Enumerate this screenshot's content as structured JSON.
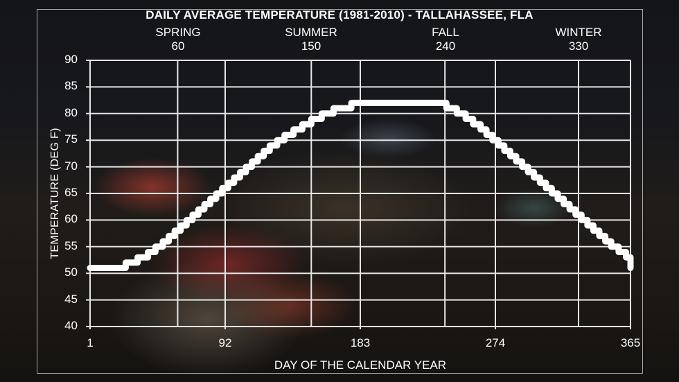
{
  "chart_data": {
    "type": "line",
    "title": "DAILY AVERAGE TEMPERATURE (1981-2010) - TALLAHASSEE, FLA",
    "xlabel": "DAY OF THE CALENDAR YEAR",
    "ylabel": "TEMPERATURE (DEG F)",
    "xlim": [
      1,
      365
    ],
    "ylim": [
      40,
      90
    ],
    "grid": true,
    "x_ticks": [
      1,
      92,
      183,
      274,
      365
    ],
    "y_ticks": [
      40,
      45,
      50,
      55,
      60,
      65,
      70,
      75,
      80,
      85,
      90
    ],
    "secondary_x_ticks": [
      {
        "label": "SPRING",
        "day": 60
      },
      {
        "label": "SUMMER",
        "day": 150
      },
      {
        "label": "FALL",
        "day": 240
      },
      {
        "label": "WINTER",
        "day": 330
      }
    ],
    "series": [
      {
        "name": "Daily average temperature",
        "step_points": [
          [
            1,
            51
          ],
          [
            25,
            51
          ],
          [
            25,
            52
          ],
          [
            33,
            52
          ],
          [
            33,
            53
          ],
          [
            40,
            53
          ],
          [
            40,
            54
          ],
          [
            45,
            54
          ],
          [
            45,
            55
          ],
          [
            50,
            55
          ],
          [
            50,
            56
          ],
          [
            54,
            56
          ],
          [
            54,
            57
          ],
          [
            58,
            57
          ],
          [
            58,
            58
          ],
          [
            62,
            58
          ],
          [
            62,
            59
          ],
          [
            66,
            59
          ],
          [
            66,
            60
          ],
          [
            70,
            60
          ],
          [
            70,
            61
          ],
          [
            74,
            61
          ],
          [
            74,
            62
          ],
          [
            78,
            62
          ],
          [
            78,
            63
          ],
          [
            82,
            63
          ],
          [
            82,
            64
          ],
          [
            86,
            64
          ],
          [
            86,
            65
          ],
          [
            90,
            65
          ],
          [
            90,
            66
          ],
          [
            94,
            66
          ],
          [
            94,
            67
          ],
          [
            98,
            67
          ],
          [
            98,
            68
          ],
          [
            102,
            68
          ],
          [
            102,
            69
          ],
          [
            106,
            69
          ],
          [
            106,
            70
          ],
          [
            110,
            70
          ],
          [
            110,
            71
          ],
          [
            114,
            71
          ],
          [
            114,
            72
          ],
          [
            118,
            72
          ],
          [
            118,
            73
          ],
          [
            122,
            73
          ],
          [
            122,
            74
          ],
          [
            127,
            74
          ],
          [
            127,
            75
          ],
          [
            132,
            75
          ],
          [
            132,
            76
          ],
          [
            138,
            76
          ],
          [
            138,
            77
          ],
          [
            144,
            77
          ],
          [
            144,
            78
          ],
          [
            150,
            78
          ],
          [
            150,
            79
          ],
          [
            157,
            79
          ],
          [
            157,
            80
          ],
          [
            165,
            80
          ],
          [
            165,
            81
          ],
          [
            177,
            81
          ],
          [
            177,
            82
          ],
          [
            241,
            82
          ],
          [
            241,
            81
          ],
          [
            248,
            81
          ],
          [
            248,
            80
          ],
          [
            254,
            80
          ],
          [
            254,
            79
          ],
          [
            259,
            79
          ],
          [
            259,
            78
          ],
          [
            264,
            78
          ],
          [
            264,
            77
          ],
          [
            268,
            77
          ],
          [
            268,
            76
          ],
          [
            272,
            76
          ],
          [
            272,
            75
          ],
          [
            276,
            75
          ],
          [
            276,
            74
          ],
          [
            280,
            74
          ],
          [
            280,
            73
          ],
          [
            284,
            73
          ],
          [
            284,
            72
          ],
          [
            288,
            72
          ],
          [
            288,
            71
          ],
          [
            292,
            71
          ],
          [
            292,
            70
          ],
          [
            296,
            70
          ],
          [
            296,
            69
          ],
          [
            300,
            69
          ],
          [
            300,
            68
          ],
          [
            304,
            68
          ],
          [
            304,
            67
          ],
          [
            308,
            67
          ],
          [
            308,
            66
          ],
          [
            312,
            66
          ],
          [
            312,
            65
          ],
          [
            316,
            65
          ],
          [
            316,
            64
          ],
          [
            320,
            64
          ],
          [
            320,
            63
          ],
          [
            324,
            63
          ],
          [
            324,
            62
          ],
          [
            328,
            62
          ],
          [
            328,
            61
          ],
          [
            332,
            61
          ],
          [
            332,
            60
          ],
          [
            336,
            60
          ],
          [
            336,
            59
          ],
          [
            340,
            59
          ],
          [
            340,
            58
          ],
          [
            344,
            58
          ],
          [
            344,
            57
          ],
          [
            348,
            57
          ],
          [
            348,
            56
          ],
          [
            352,
            56
          ],
          [
            352,
            55
          ],
          [
            357,
            55
          ],
          [
            357,
            54
          ],
          [
            362,
            54
          ],
          [
            362,
            53
          ],
          [
            365,
            53
          ],
          [
            365,
            51
          ]
        ],
        "summary": {
          "min_F": 51,
          "max_F": 82,
          "peak_days": [
            177,
            241
          ],
          "jan1_F": 51,
          "dec31_F": 51
        }
      }
    ],
    "colors": {
      "line": "#ffffff",
      "grid": "#e6e6e6"
    }
  },
  "labels": {
    "title": "DAILY AVERAGE TEMPERATURE (1981-2010) - TALLAHASSEE, FLA",
    "ylabel": "TEMPERATURE (DEG F)",
    "xlabel": "DAY OF THE CALENDAR YEAR",
    "seasons": [
      {
        "name": "SPRING",
        "day": "60"
      },
      {
        "name": "SUMMER",
        "day": "150"
      },
      {
        "name": "FALL",
        "day": "240"
      },
      {
        "name": "WINTER",
        "day": "330"
      }
    ],
    "yticks": [
      "90",
      "85",
      "80",
      "75",
      "70",
      "65",
      "60",
      "55",
      "50",
      "45",
      "40"
    ],
    "xticks": [
      "1",
      "92",
      "183",
      "274",
      "365"
    ]
  }
}
